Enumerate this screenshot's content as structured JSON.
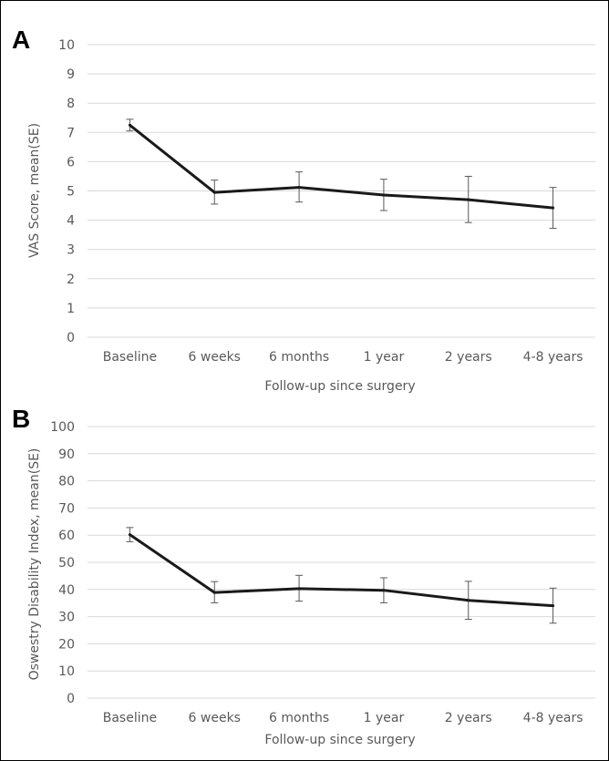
{
  "figure": {
    "colors": {
      "line": "#1a1a1a",
      "grid": "#d9d9d9",
      "error_bar": "#595959",
      "text": "#595959"
    }
  },
  "chart_data": [
    {
      "type": "line",
      "panel": "A",
      "categories": [
        "Baseline",
        "6 weeks",
        "6 months",
        "1 year",
        "2 years",
        "4-8 years"
      ],
      "series": [
        {
          "values": [
            7.25,
            4.95,
            5.12,
            4.86,
            4.7,
            4.42
          ],
          "error_low": [
            7.05,
            4.55,
            4.62,
            4.33,
            3.92,
            3.72
          ],
          "error_high": [
            7.45,
            5.37,
            5.65,
            5.4,
            5.5,
            5.12
          ]
        }
      ],
      "ylabel": "VAS Score, mean(SE)",
      "xlabel": "Follow-up since surgery",
      "ylim": [
        0,
        10
      ],
      "yticks": [
        "0",
        "1",
        "2",
        "3",
        "4",
        "5",
        "6",
        "7",
        "8",
        "9",
        "10"
      ],
      "grid": true,
      "legend": "none"
    },
    {
      "type": "line",
      "panel": "B",
      "categories": [
        "Baseline",
        "6 weeks",
        "6 months",
        "1 year",
        "2 years",
        "4-8 years"
      ],
      "series": [
        {
          "values": [
            60.2,
            38.9,
            40.3,
            39.7,
            36.0,
            34.0
          ],
          "error_low": [
            57.6,
            35.1,
            35.7,
            35.1,
            29.0,
            27.6
          ],
          "error_high": [
            62.8,
            42.9,
            45.2,
            44.3,
            43.0,
            40.5
          ]
        }
      ],
      "ylabel": "Oswestry Disability Index, mean(SE)",
      "xlabel": "Follow-up since surgery",
      "ylim": [
        0,
        100
      ],
      "yticks": [
        "0",
        "10",
        "20",
        "30",
        "40",
        "50",
        "60",
        "70",
        "80",
        "90",
        "100"
      ],
      "grid": true,
      "legend": "none"
    }
  ]
}
